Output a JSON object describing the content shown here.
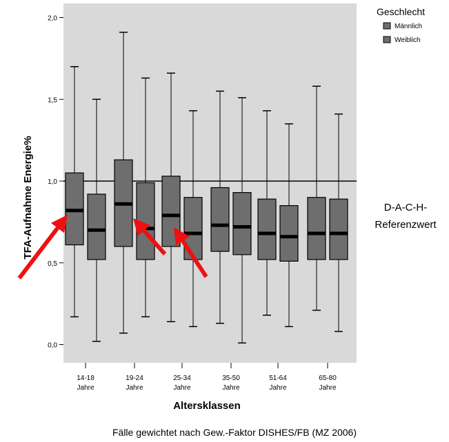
{
  "chart_data": {
    "type": "boxplot",
    "xlabel": "Altersklassen",
    "ylabel": "TFA-Aufnahme Energie%",
    "ylim": [
      -0.05,
      2.05
    ],
    "yticks": [
      {
        "value": 0.0,
        "label": "0,0"
      },
      {
        "value": 0.5,
        "label": "0,5"
      },
      {
        "value": 1.0,
        "label": "1,0"
      },
      {
        "value": 1.5,
        "label": "1,5"
      },
      {
        "value": 2.0,
        "label": "2,0"
      }
    ],
    "categories": [
      {
        "line1": "14-18",
        "line2": "Jahre"
      },
      {
        "line1": "19-24",
        "line2": "Jahre"
      },
      {
        "line1": "25-34",
        "line2": "Jahre"
      },
      {
        "line1": "35-50",
        "line2": "Jahre"
      },
      {
        "line1": "51-64",
        "line2": "Jahre"
      },
      {
        "line1": "65-80",
        "line2": "Jahre"
      }
    ],
    "legend": {
      "title": "Geschlecht",
      "position": "top-right",
      "entries": [
        "Männlich",
        "Weiblich"
      ]
    },
    "series": [
      {
        "name": "Männlich",
        "boxes": [
          {
            "min": 0.17,
            "q1": 0.61,
            "median": 0.82,
            "q3": 1.05,
            "max": 1.7
          },
          {
            "min": 0.07,
            "q1": 0.6,
            "median": 0.86,
            "q3": 1.13,
            "max": 1.91
          },
          {
            "min": 0.14,
            "q1": 0.6,
            "median": 0.79,
            "q3": 1.03,
            "max": 1.66
          },
          {
            "min": 0.13,
            "q1": 0.57,
            "median": 0.73,
            "q3": 0.96,
            "max": 1.55
          },
          {
            "min": 0.18,
            "q1": 0.52,
            "median": 0.68,
            "q3": 0.89,
            "max": 1.43
          },
          {
            "min": 0.21,
            "q1": 0.52,
            "median": 0.68,
            "q3": 0.9,
            "max": 1.58
          }
        ]
      },
      {
        "name": "Weiblich",
        "boxes": [
          {
            "min": 0.02,
            "q1": 0.52,
            "median": 0.7,
            "q3": 0.92,
            "max": 1.5
          },
          {
            "min": 0.17,
            "q1": 0.52,
            "median": 0.71,
            "q3": 0.99,
            "max": 1.63
          },
          {
            "min": 0.11,
            "q1": 0.52,
            "median": 0.68,
            "q3": 0.9,
            "max": 1.43
          },
          {
            "min": 0.01,
            "q1": 0.55,
            "median": 0.72,
            "q3": 0.93,
            "max": 1.51
          },
          {
            "min": 0.11,
            "q1": 0.51,
            "median": 0.66,
            "q3": 0.85,
            "max": 1.35
          },
          {
            "min": 0.08,
            "q1": 0.52,
            "median": 0.68,
            "q3": 0.89,
            "max": 1.41
          }
        ]
      }
    ],
    "reference_line": {
      "value": 1.0,
      "label_lines": [
        "D-A-C-H-",
        "Referenzwert"
      ]
    },
    "annotations": {
      "red_arrows_pointing_to_medians_of": [
        "14-18 Jahre Männlich",
        "19-24 Jahre Männlich",
        "25-34 Jahre Männlich"
      ]
    },
    "colors": {
      "plot_background": "#d9d9d9",
      "box_fill": "#6e6e6e",
      "arrow": "#ee1111"
    },
    "footnote": "Fälle gewichtet nach Gew.-Faktor DISHES/FB (MZ 2006)"
  }
}
